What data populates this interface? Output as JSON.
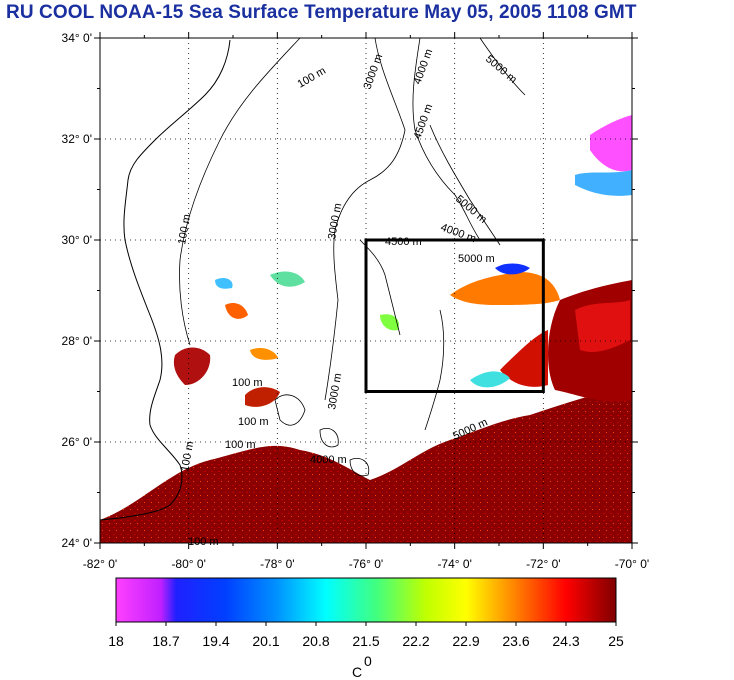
{
  "title": "RU COOL  NOAA-15 Sea Surface Temperature May 05, 2005 1108 GMT",
  "map": {
    "lat_labels": [
      "34° 0'",
      "32° 0'",
      "30° 0'",
      "28° 0'",
      "26° 0'",
      "24° 0'"
    ],
    "lon_labels": [
      "-82° 0'",
      "-80° 0'",
      "-78° 0'",
      "-76° 0'",
      "-74° 0'",
      "-72° 0'",
      "-70° 0'"
    ],
    "lat_range": [
      24,
      34
    ],
    "lon_range": [
      -82,
      -70
    ],
    "box": {
      "lon_min": -76,
      "lon_max": -72,
      "lat_min": 27,
      "lat_max": 30
    },
    "isobath_labels": [
      "100 m",
      "3000 m",
      "4000 m",
      "5000 m",
      "4500 m",
      "3000 m",
      "100 m",
      "5000 m",
      "4000 m",
      "4500 m",
      "5000 m",
      "100 m",
      "100 m",
      "100 m",
      "100 m",
      "4000 m",
      "5000 m",
      "3000 m",
      "100 m"
    ]
  },
  "colorbar": {
    "ticks": [
      "18",
      "18.7",
      "19.4",
      "20.1",
      "20.8",
      "21.5",
      "22.2",
      "22.9",
      "23.6",
      "24.3",
      "25"
    ],
    "unit": "C",
    "unit_sup": "0",
    "range": [
      18,
      25
    ]
  },
  "colors": {
    "title": "#1a2fa0",
    "box": "#000000",
    "warm": "#8b0000"
  }
}
